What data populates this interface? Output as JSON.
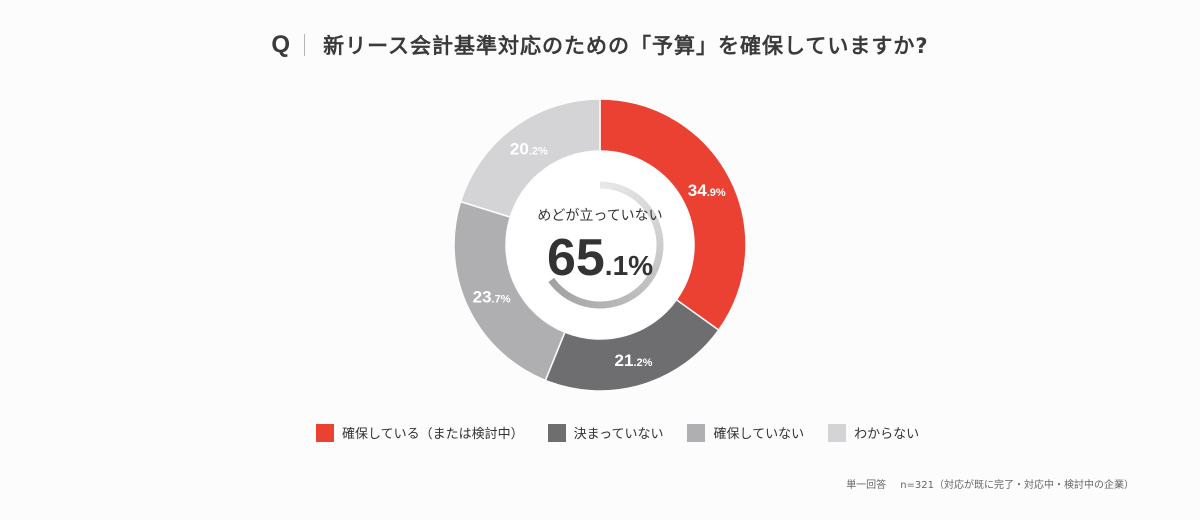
{
  "question": {
    "mark": "Q",
    "text": "新リース会計基準対応のための「予算」を確保していますか?"
  },
  "chart_data": {
    "type": "pie",
    "categories": [
      "確保している（または検討中）",
      "決まっていない",
      "確保していない",
      "わからない"
    ],
    "values": [
      34.9,
      21.2,
      23.7,
      20.2
    ],
    "colors": [
      "#ea4133",
      "#6e6d6f",
      "#afaeb0",
      "#d4d3d5"
    ],
    "value_labels": [
      {
        "big": "34",
        "small": ".9%"
      },
      {
        "big": "21",
        "small": ".2%"
      },
      {
        "big": "23",
        "small": ".7%"
      },
      {
        "big": "20",
        "small": ".2%"
      }
    ],
    "center": {
      "label": "めどが立っていない",
      "value_big": "65",
      "value_small": ".1%",
      "arc_value": 65.1
    },
    "legend_position": "bottom"
  },
  "footnote": {
    "type": "単一回答",
    "sample": "n=321（対応が既に完了・対応中・検討中の企業）"
  }
}
